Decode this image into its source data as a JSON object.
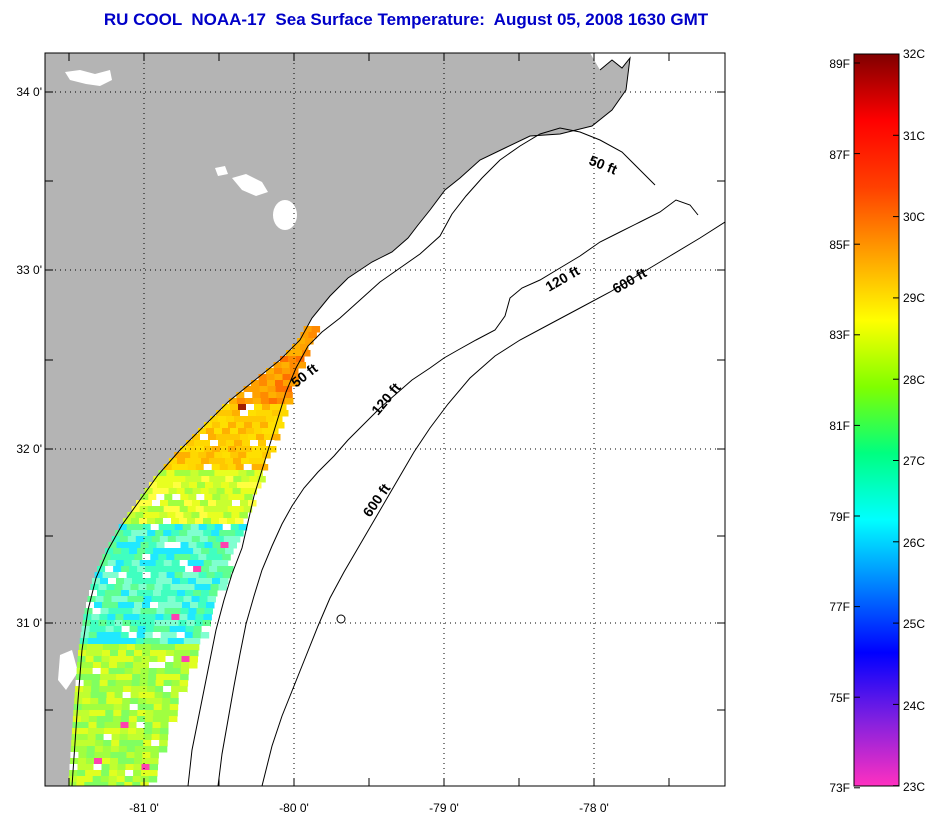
{
  "title": "RU COOL  NOAA-17  Sea Surface Temperature:  August 05, 2008 1630 GMT",
  "map": {
    "lat_ticks": [
      "34 0'",
      "33 0'",
      "32 0'",
      "31 0'"
    ],
    "lon_ticks": [
      "-81 0'",
      "-80 0'",
      "-79 0'",
      "-78 0'"
    ],
    "contour_labels": [
      "50 ft",
      "120 ft",
      "600 ft",
      "50 ft",
      "120 ft",
      "600 ft"
    ],
    "land_color": "#b4b4b4",
    "coast_color": "#000000"
  },
  "colorbar": {
    "fahrenheit_labels": [
      "89F",
      "87F",
      "85F",
      "83F",
      "81F",
      "79F",
      "77F",
      "75F",
      "73F"
    ],
    "celsius_labels": [
      "32C",
      "31C",
      "30C",
      "29C",
      "28C",
      "27C",
      "26C",
      "25C",
      "24C",
      "23C"
    ],
    "colors": [
      "#ff30c0",
      "#8020e0",
      "#0000ff",
      "#0080ff",
      "#00ffff",
      "#00ff80",
      "#80ff00",
      "#ffff00",
      "#ffa000",
      "#ff4000",
      "#ff0000",
      "#800000"
    ]
  }
}
